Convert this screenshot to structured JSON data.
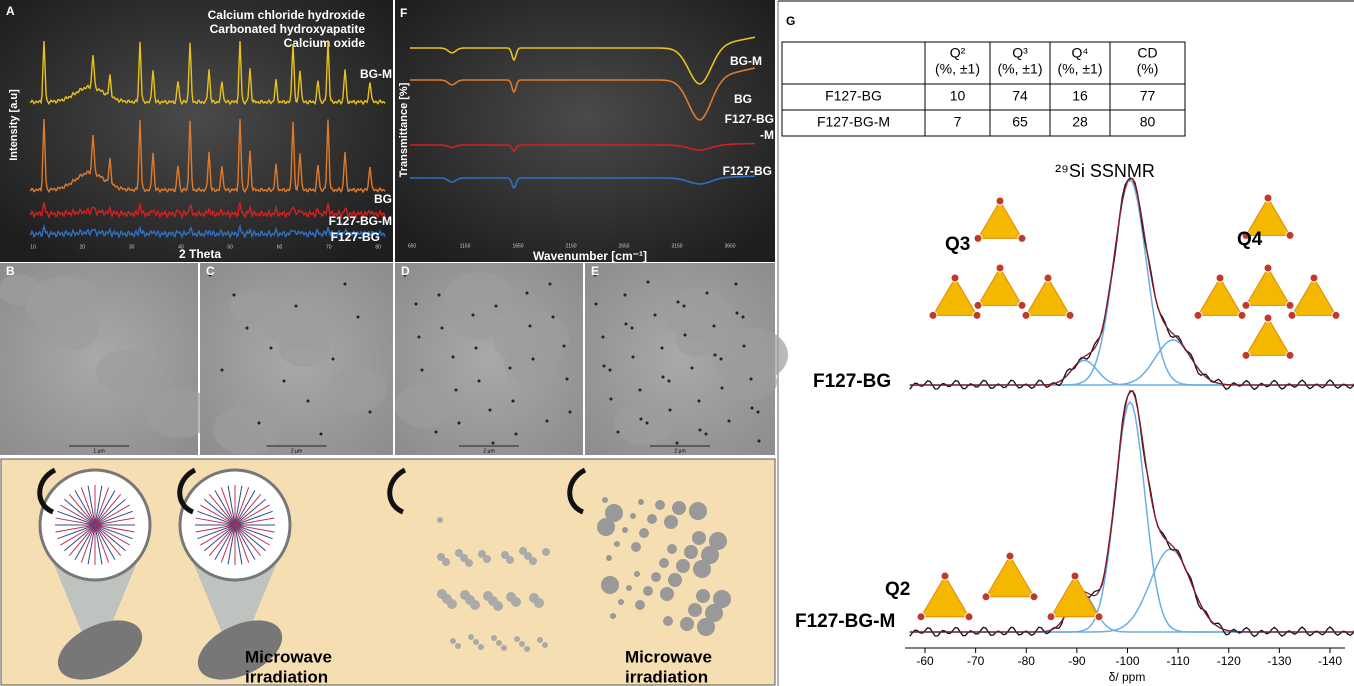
{
  "panels": {
    "A": {
      "label": "A",
      "legend": [
        "Calcium chloride hydroxide",
        "Carbonated hydroxyapatite",
        "Calcium oxide"
      ],
      "series_labels": [
        "BG-M",
        "BG",
        "F127-BG-M",
        "F127-BG"
      ],
      "x_label": "2 Theta",
      "y_label": "Intensity [a.u]",
      "x_ticks": [
        10,
        20,
        30,
        40,
        50,
        60,
        70,
        80
      ]
    },
    "F": {
      "label": "F",
      "series_labels": [
        "BG-M",
        "BG",
        "F127-BG",
        "-M",
        "F127-BG"
      ],
      "x_label": "Wavenumber [cm⁻¹]",
      "y_label": "Transmittance [%]",
      "x_ticks": [
        650,
        1150,
        1650,
        2150,
        2650,
        3150,
        3650
      ]
    },
    "tem": [
      {
        "label": "B",
        "scale": "1 µm"
      },
      {
        "label": "C",
        "scale": "2 µm"
      },
      {
        "label": "D",
        "scale": "2 µm"
      },
      {
        "label": "E",
        "scale": "2 µm"
      }
    ],
    "scheme": {
      "captions": [
        [
          "Microwave",
          "irradiation"
        ],
        [
          "Microwave",
          "irradiation"
        ]
      ]
    },
    "G": {
      "label": "G",
      "table": {
        "header": [
          [
            "",
            ""
          ],
          [
            "Q²",
            "(%, ±1)"
          ],
          [
            "Q³",
            "(%, ±1)"
          ],
          [
            "Q⁴",
            "(%, ±1)"
          ],
          [
            "CD",
            "(%)"
          ]
        ],
        "rows": [
          [
            "F127-BG",
            "10",
            "74",
            "16",
            "77"
          ],
          [
            "F127-BG-M",
            "7",
            "65",
            "28",
            "80"
          ]
        ]
      },
      "title": "²⁹Si SSNMR",
      "structures": [
        "Q3",
        "Q4",
        "Q2"
      ],
      "spectra": [
        "F127-BG",
        "F127-BG-M"
      ],
      "x_ticks": [
        -60,
        -70,
        -80,
        -90,
        -100,
        -110,
        -120,
        -130,
        -140
      ],
      "x_label": "δ/ ppm"
    }
  }
}
